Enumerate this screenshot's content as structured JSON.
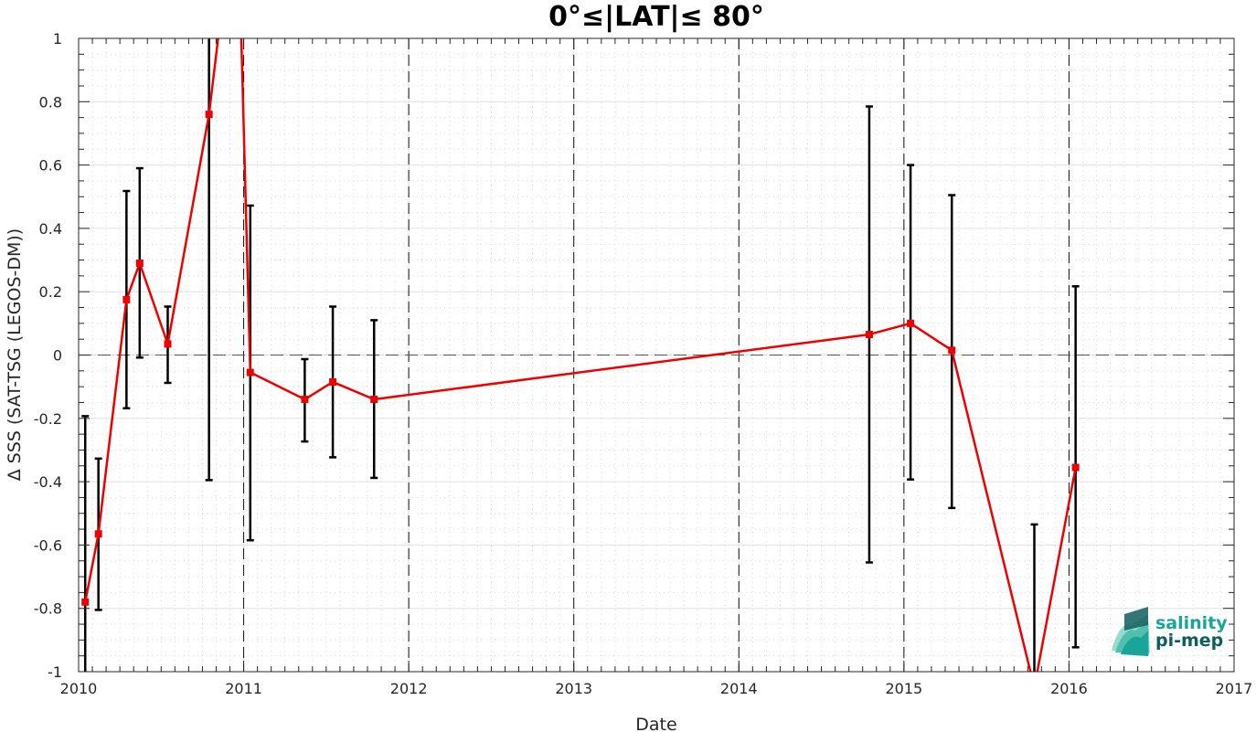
{
  "chart_data": {
    "type": "line",
    "title": "0°≤|LAT|≤ 80°",
    "xlabel": "Date",
    "ylabel": "Δ SSS (SAT-TSG (LEGOS-DM))",
    "xlim": [
      2010,
      2017
    ],
    "ylim": [
      -1,
      1
    ],
    "x_ticks": [
      "2010",
      "2011",
      "2012",
      "2013",
      "2014",
      "2015",
      "2016",
      "2017"
    ],
    "y_ticks": [
      "1",
      "0.8",
      "0.6",
      "0.4",
      "0.2",
      "0",
      "-0.2",
      "-0.4",
      "-0.6",
      "-0.8",
      "-1"
    ],
    "grid": true,
    "reference_line_y": 0,
    "year_dashed_lines": [
      2011,
      2012,
      2013,
      2014,
      2015,
      2016
    ],
    "series": [
      {
        "color": "#ee0000",
        "marker": "square",
        "x": [
          2010.04,
          2010.12,
          2010.29,
          2010.37,
          2010.54,
          2010.79,
          2010.96,
          2011.04,
          2011.37,
          2011.54,
          2011.79,
          2014.79,
          2015.04,
          2015.29,
          2015.79,
          2016.04
        ],
        "y": [
          -0.78,
          -0.565,
          0.175,
          0.29,
          0.035,
          0.76,
          1.5,
          -0.055,
          -0.14,
          -0.085,
          -0.14,
          0.065,
          0.1,
          0.015,
          -1.05,
          -0.355
        ],
        "err_low": [
          -1.05,
          -0.805,
          -0.168,
          -0.008,
          -0.088,
          -0.395,
          null,
          -0.585,
          -0.273,
          -0.323,
          -0.388,
          -0.655,
          -0.393,
          -0.483,
          -1.05,
          -0.923
        ],
        "err_high": [
          -0.193,
          -0.327,
          0.518,
          0.59,
          0.153,
          1.05,
          null,
          0.472,
          -0.013,
          0.153,
          0.11,
          0.785,
          0.6,
          0.505,
          -0.535,
          0.217
        ]
      }
    ]
  },
  "logo": {
    "line1": "salinity",
    "line2": "pi-mep",
    "colors": {
      "teal": "#1aa59a",
      "dark": "#0f5e5e"
    }
  }
}
